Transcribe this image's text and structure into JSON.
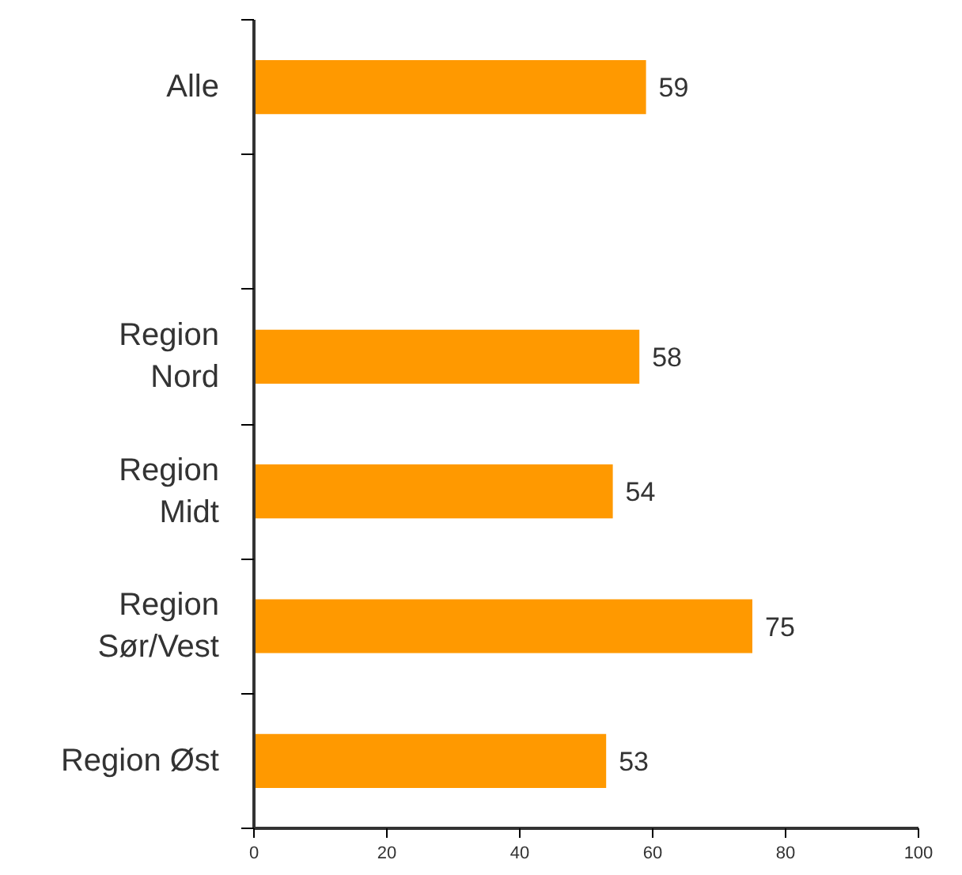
{
  "chart_data": {
    "type": "bar",
    "orientation": "horizontal",
    "categories": [
      "Alle",
      null,
      "Region\nNord",
      "Region\nMidt",
      "Region\nSør/Vest",
      "Region Øst"
    ],
    "values": [
      59,
      null,
      58,
      54,
      75,
      53
    ],
    "color": "#ff9900",
    "xlim": [
      0,
      100
    ],
    "xticks": [
      0,
      20,
      40,
      60,
      80,
      100
    ],
    "data_labels": true,
    "grid": false
  }
}
